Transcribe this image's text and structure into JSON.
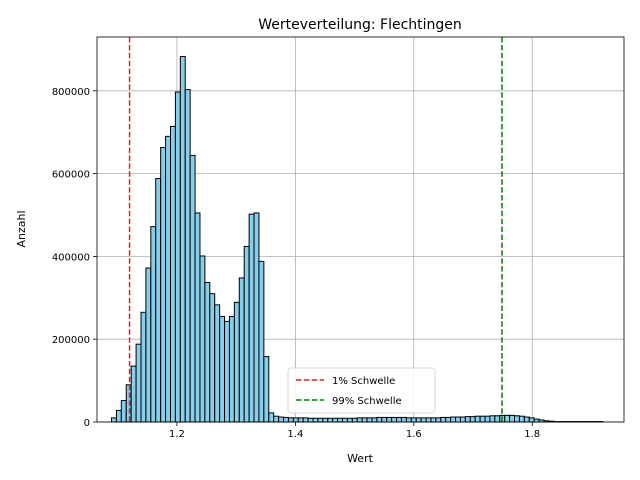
{
  "chart_data": {
    "type": "bar",
    "title": "Werteverteilung: Flechtingen",
    "xlabel": "Wert",
    "ylabel": "Anzahl",
    "xlim": [
      1.065,
      1.955
    ],
    "ylim": [
      0,
      930000
    ],
    "grid": true,
    "legend_position": "bottom-center",
    "bar_color": "#87CEEB",
    "bar_edge_color": "#000000",
    "x_ticks": [
      1.2,
      1.4,
      1.6,
      1.8
    ],
    "x_tick_labels": [
      "1.2",
      "1.4",
      "1.6",
      "1.8"
    ],
    "y_ticks": [
      0,
      200000,
      400000,
      600000,
      800000
    ],
    "y_tick_labels": [
      "0",
      "200000",
      "400000",
      "600000",
      "800000"
    ],
    "bin_width": 0.0083,
    "bins_start": [
      1.0895,
      1.0978,
      1.1061,
      1.1144,
      1.1227,
      1.131,
      1.1393,
      1.1476,
      1.1559,
      1.1642,
      1.1725,
      1.1808,
      1.1891,
      1.1974,
      1.2057,
      1.214,
      1.2223,
      1.2306,
      1.2389,
      1.2472,
      1.2555,
      1.2638,
      1.2721,
      1.2804,
      1.2887,
      1.297,
      1.3053,
      1.3136,
      1.3219,
      1.3302,
      1.3385,
      1.3468,
      1.3551,
      1.3634,
      1.3717,
      1.38,
      1.3883,
      1.3966,
      1.4049,
      1.4132,
      1.4215,
      1.4298,
      1.4381,
      1.4464,
      1.4547,
      1.463,
      1.4713,
      1.4796,
      1.4879,
      1.4962,
      1.5045,
      1.5128,
      1.5211,
      1.5294,
      1.5377,
      1.546,
      1.5543,
      1.5626,
      1.5709,
      1.5792,
      1.5875,
      1.5958,
      1.6041,
      1.6124,
      1.6207,
      1.629,
      1.6373,
      1.6456,
      1.6539,
      1.6622,
      1.6705,
      1.6788,
      1.6871,
      1.6954,
      1.7037,
      1.712,
      1.7203,
      1.7286,
      1.7369,
      1.7452,
      1.7535,
      1.7618,
      1.7701,
      1.7784,
      1.7867,
      1.795,
      1.8033,
      1.8116,
      1.8199,
      1.8282,
      1.8365,
      1.8448,
      1.8531,
      1.8614,
      1.8697,
      1.878,
      1.8863,
      1.8946,
      1.9029,
      1.9112
    ],
    "counts": [
      10000,
      28000,
      52000,
      90000,
      135000,
      188000,
      265000,
      372000,
      472000,
      588000,
      663000,
      690000,
      714000,
      797000,
      883000,
      803000,
      644000,
      505000,
      401000,
      337000,
      310000,
      283000,
      255000,
      243000,
      255000,
      289000,
      348000,
      424000,
      502000,
      505000,
      388000,
      158000,
      22000,
      14000,
      12000,
      11000,
      10000,
      10000,
      10000,
      10000,
      9000,
      9000,
      9000,
      9000,
      9000,
      9000,
      9000,
      9000,
      9000,
      9000,
      10000,
      10000,
      10000,
      10000,
      11000,
      11000,
      11000,
      11000,
      11000,
      11000,
      10000,
      10000,
      10000,
      10000,
      10000,
      10000,
      10000,
      11000,
      11000,
      12000,
      12000,
      12000,
      13000,
      13000,
      14000,
      14000,
      14000,
      15000,
      15000,
      16000,
      16000,
      16000,
      15000,
      14000,
      12000,
      10000,
      7000,
      5000,
      3000,
      2000,
      1000,
      1000,
      1000,
      1000,
      1000,
      1000,
      1000,
      1000,
      1000,
      1000
    ],
    "reference_lines": [
      {
        "label": "1% Schwelle",
        "x": 1.12,
        "color": "#d62728"
      },
      {
        "label": "99% Schwelle",
        "x": 1.749,
        "color": "#008000"
      }
    ]
  }
}
